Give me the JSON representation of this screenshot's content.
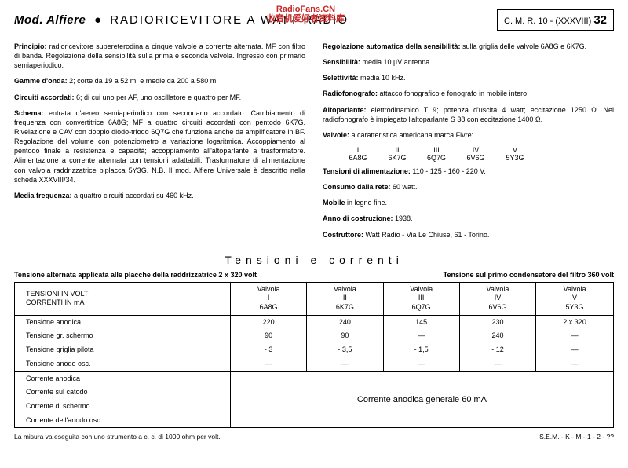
{
  "header": {
    "mod": "Mod. Alfiere",
    "brand": "RADIORICEVITORE A WATT RADIO",
    "ref_prefix": "C. M. R. 10 - (XXXVIII)",
    "ref_num": "32"
  },
  "watermark": {
    "line1": "RadioFans.CN",
    "line2": "收音机爱好者资料库"
  },
  "left_paras": [
    {
      "label": "Principio:",
      "text": "radioricevitore supereterodina a cinque valvole a corrente alternata. MF con filtro di banda. Regolazione della sensibilità sulla prima e seconda valvola. Ingresso con primario semiaperiodico."
    },
    {
      "label": "Gamme d'onda:",
      "text": "2; corte da 19 a 52 m, e medie da 200 a 580 m."
    },
    {
      "label": "Circuiti accordati:",
      "text": "6; di cui uno per AF, uno oscillatore e quattro per MF."
    },
    {
      "label": "Schema:",
      "text": "entrata d'aereo semiaperiodico con secondario accordato. Cambiamento di frequenza con convertitrice 6A8G; MF a quattro circuiti accordati con pentodo 6K7G. Rivelazione e CAV con doppio diodo-triodo 6Q7G che funziona anche da amplificatore in BF. Regolazione del volume con potenziometro a variazione logaritmica. Accoppiamento al pentodo finale a resistenza e capacità; accoppiamento all'altoparlante a trasformatore. Alimentazione a corrente alternata con tensioni adattabili. Trasformatore di alimentazione con valvola raddrizzatrice biplacca 5Y3G. N.B. Il mod. Alfiere Universale è descritto nella scheda XXXVIII/34."
    },
    {
      "label": "Media frequenza:",
      "text": "a quattro circuiti accordati su 460 kHz."
    }
  ],
  "right_paras": [
    {
      "label": "Regolazione automatica della sensibilità:",
      "text": "sulla griglia delle valvole 6A8G e 6K7G."
    },
    {
      "label": "Sensibilità:",
      "text": "media 10 µV antenna."
    },
    {
      "label": "Selettività:",
      "text": "media 10 kHz."
    },
    {
      "label": "Radiofonografo:",
      "text": "attacco fonografico e fonografo in mobile intero"
    },
    {
      "label": "Altoparlante:",
      "text": "elettrodinamico T 9; potenza d'uscita 4 watt; eccitazione 1250 Ω. Nel radiofonografo è impiegato l'altoparlante S 38 con eccitazione 1400 Ω."
    },
    {
      "label": "Valvole:",
      "text": "a caratteristica americana marca Fivre:"
    }
  ],
  "valves": {
    "roman": [
      "I",
      "II",
      "III",
      "IV",
      "V"
    ],
    "types": [
      "6A8G",
      "6K7G",
      "6Q7G",
      "6V6G",
      "5Y3G"
    ]
  },
  "right_paras2": [
    {
      "label": "Tensioni di alimentazione:",
      "text": "110 - 125 - 160 - 220 V."
    },
    {
      "label": "Consumo dalla rete:",
      "text": "60 watt."
    },
    {
      "label": "Mobile",
      "text": "in legno fine."
    },
    {
      "label": "Anno di costruzione:",
      "text": "1938."
    },
    {
      "label": "Costruttore:",
      "text": "Watt Radio - Via Le Chiuse, 61 - Torino."
    }
  ],
  "section_title": "Tensioni e correnti",
  "caption_left": "Tensione alternata applicata alle placche della raddrizzatrice 2 x 320 volt",
  "caption_right": "Tensione sul primo condensatore del filtro 360 volt",
  "table": {
    "head_l1": "TENSIONI IN VOLT",
    "head_l2": "CORRENTI IN mA",
    "cols": [
      {
        "l1": "Valvola",
        "l2": "I",
        "l3": "6A8G"
      },
      {
        "l1": "Valvola",
        "l2": "II",
        "l3": "6K7G"
      },
      {
        "l1": "Valvola",
        "l2": "III",
        "l3": "6Q7G"
      },
      {
        "l1": "Valvola",
        "l2": "IV",
        "l3": "6V6G"
      },
      {
        "l1": "Valvola",
        "l2": "V",
        "l3": "5Y3G"
      }
    ],
    "rows1": [
      {
        "label": "Tensione anodica",
        "v": [
          "220",
          "240",
          "145",
          "230",
          "2 x 320"
        ]
      },
      {
        "label": "Tensione gr. schermo",
        "v": [
          "90",
          "90",
          "—",
          "240",
          "—"
        ]
      },
      {
        "label": "Tensione griglia pilota",
        "v": [
          "- 3",
          "- 3,5",
          "- 1,5",
          "- 12",
          "—"
        ]
      },
      {
        "label": "Tensione anodo osc.",
        "v": [
          "—",
          "—",
          "—",
          "—",
          "—"
        ]
      }
    ],
    "rows2_labels": [
      "Corrente anodica",
      "Corrente sul catodo",
      "Corrente di schermo",
      "Corrente dell'anodo osc."
    ],
    "rows2_merged": "Corrente anodica generale 60 mA"
  },
  "footnote_left": "La misura va eseguita con uno strumento a c. c. di 1000 ohm per volt.",
  "footnote_right": "S.E.M. - K - M - 1 - 2 - ??"
}
